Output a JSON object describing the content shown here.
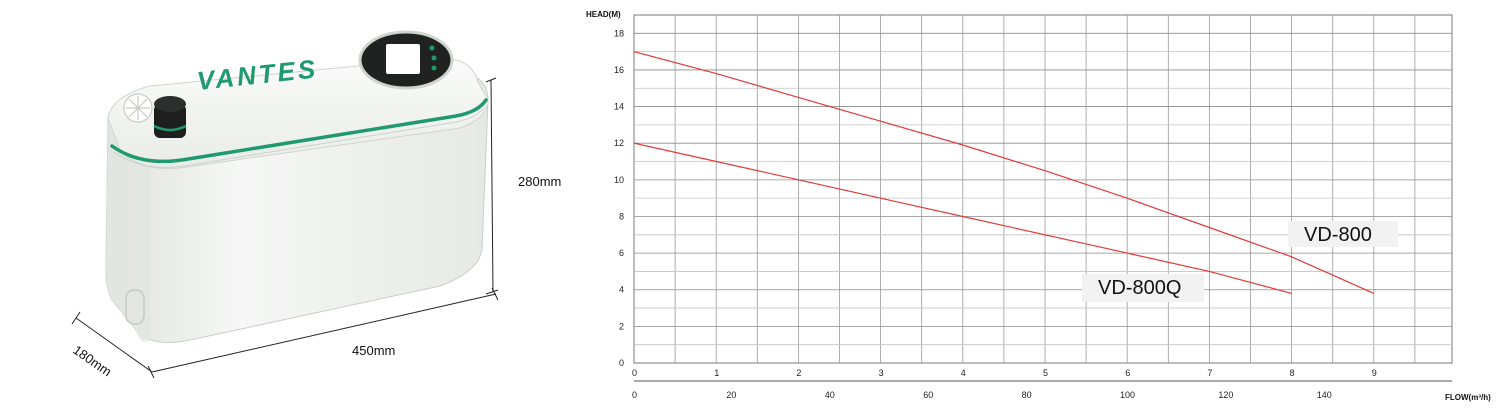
{
  "product": {
    "brand": "VANTES",
    "dimensions": {
      "height": "280mm",
      "width": "450mm",
      "depth": "180mm"
    },
    "body_color": "#f1f3f1",
    "accent_color": "#1f9a6c"
  },
  "chart_data": {
    "type": "line",
    "ylabel": "HEAD(M)",
    "xlabel": "FLOW(m³/h)",
    "ylim": [
      0,
      19
    ],
    "yticks": [
      0,
      2,
      4,
      6,
      8,
      10,
      12,
      14,
      16,
      18
    ],
    "x_ticks_top": [
      "0",
      "1",
      "2",
      "3",
      "4",
      "5",
      "6",
      "7",
      "8",
      "9"
    ],
    "x_ticks_bottom": [
      "0",
      "20",
      "40",
      "60",
      "80",
      "100",
      "120",
      "140"
    ],
    "xlim": [
      0,
      9.75
    ],
    "grid": true,
    "series": [
      {
        "name": "VD-800",
        "color": "#e03a3a",
        "x": [
          0,
          1,
          2,
          3,
          4,
          5,
          6,
          7,
          8,
          9
        ],
        "y": [
          17.0,
          15.8,
          14.5,
          13.2,
          11.9,
          10.5,
          9.0,
          7.4,
          5.8,
          3.8
        ]
      },
      {
        "name": "VD-800Q",
        "color": "#e03a3a",
        "x": [
          0,
          1,
          2,
          3,
          4,
          5,
          6,
          7,
          8
        ],
        "y": [
          12.0,
          11.0,
          10.0,
          9.0,
          8.0,
          7.0,
          6.0,
          5.0,
          3.8
        ]
      }
    ]
  }
}
